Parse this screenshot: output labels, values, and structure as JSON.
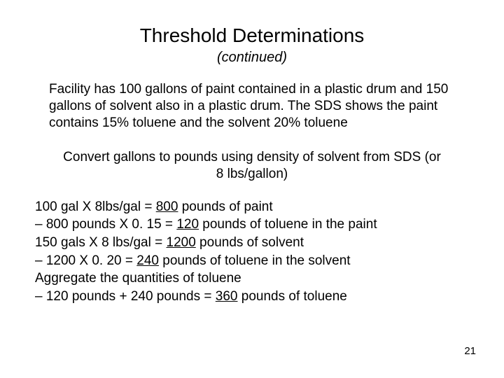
{
  "title": "Threshold Determinations",
  "subtitle": "(continued)",
  "intro_text": "Facility has 100 gallons of paint contained in a plastic drum and 150 gallons of solvent also in a plastic drum. The SDS shows the paint contains 15% toluene and the solvent 20% toluene",
  "instruction_text": "Convert gallons to pounds using density of solvent from SDS (or 8 lbs/gallon)",
  "calc": {
    "l1_pre": "100 gal X 8lbs/gal = ",
    "l1_u": "800",
    "l1_post": " pounds of paint",
    "l2_pre": "– 800 pounds X 0. 15 = ",
    "l2_u": "120",
    "l2_post": " pounds of toluene in the paint",
    "l3_pre": "150 gals X 8 lbs/gal = ",
    "l3_u": "1200",
    "l3_post": " pounds of solvent",
    "l4_pre": "– 1200 X 0. 20 = ",
    "l4_u": "240",
    "l4_post": " pounds of toluene in the solvent",
    "l5": "Aggregate the quantities of toluene",
    "l6_pre": "– 120 pounds + 240 pounds = ",
    "l6_u": "360",
    "l6_post": " pounds of toluene"
  },
  "page_number": "21"
}
